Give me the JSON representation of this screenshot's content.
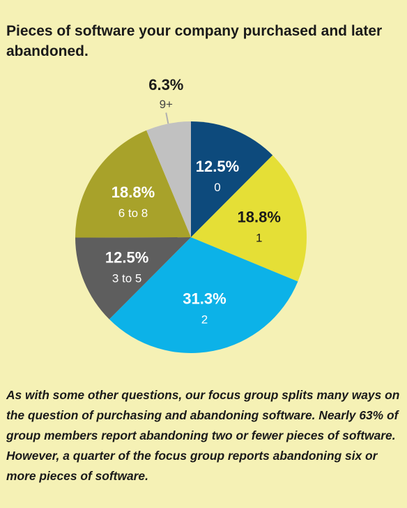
{
  "title": "Pieces of software your company purchased and later abandoned.",
  "caption": "As with some other questions, our focus group splits many ways on the question of purchasing and abandoning software. Nearly 63% of group members report abandoning two or fewer pieces of software. However, a quarter of the focus group reports abandoning six or more pieces of software.",
  "chart_data": {
    "type": "pie",
    "title": "Pieces of software your company purchased and later abandoned.",
    "start": "12 o'clock, clockwise",
    "slices": [
      {
        "label": "0",
        "pct_label": "12.5%",
        "value": 12.5,
        "color": "#0d4a7c",
        "text_color": "#ffffff"
      },
      {
        "label": "1",
        "pct_label": "18.8%",
        "value": 18.8,
        "color": "#e5df36",
        "text_color": "#1a1a1a"
      },
      {
        "label": "2",
        "pct_label": "31.3%",
        "value": 31.3,
        "color": "#0cb2e8",
        "text_color": "#ffffff"
      },
      {
        "label": "3 to 5",
        "pct_label": "12.5%",
        "value": 12.5,
        "color": "#5e5e5e",
        "text_color": "#ffffff"
      },
      {
        "label": "6 to 8",
        "pct_label": "18.8%",
        "value": 18.8,
        "color": "#a8a22a",
        "text_color": "#ffffff"
      },
      {
        "label": "9+",
        "pct_label": "6.3%",
        "value": 6.3,
        "color": "#c1c1c1",
        "text_color": "#1a1a1a",
        "label_outside": true
      }
    ]
  }
}
